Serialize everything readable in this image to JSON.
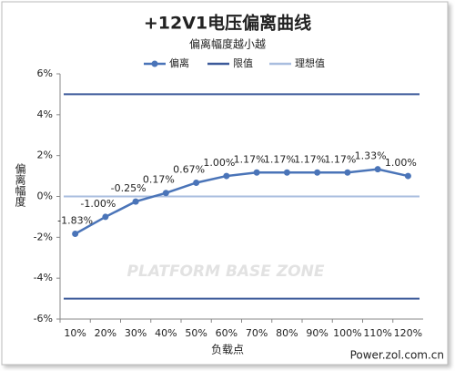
{
  "chart_data": {
    "type": "line",
    "title": "+12V1电压偏离曲线",
    "subtitle": "偏离幅度越小越",
    "xlabel": "负载点",
    "ylabel": "偏离幅度",
    "watermark": "PLATFORM BASE ZONE",
    "source": "Power.zol.com.cn",
    "categories": [
      "10%",
      "20%",
      "30%",
      "40%",
      "50%",
      "60%",
      "70%",
      "80%",
      "90%",
      "100%",
      "110%",
      "120%"
    ],
    "series": [
      {
        "name": "偏离",
        "color": "#4a74b8",
        "values": [
          -1.83,
          -1.0,
          -0.25,
          0.17,
          0.67,
          1.0,
          1.17,
          1.17,
          1.17,
          1.17,
          1.33,
          1.0
        ],
        "value_labels": [
          "-1.83%",
          "-1.00%",
          "-0.25%",
          "0.17%",
          "0.67%",
          "1.00%",
          "1.17%",
          "1.17%",
          "1.17%",
          "1.17%",
          "1.33%",
          "1.00%"
        ]
      }
    ],
    "reference_lines": [
      {
        "name": "限值",
        "color": "#3c5a9a",
        "values": [
          5,
          -5
        ]
      },
      {
        "name": "理想值",
        "color": "#a9bedf",
        "values": [
          0
        ]
      }
    ],
    "ylim": [
      -6,
      6
    ],
    "yticks": [
      {
        "value": -6,
        "label": "-6%"
      },
      {
        "value": -4,
        "label": "-4%"
      },
      {
        "value": -2,
        "label": "-2%"
      },
      {
        "value": 0,
        "label": "0%"
      },
      {
        "value": 2,
        "label": "2%"
      },
      {
        "value": 4,
        "label": "4%"
      },
      {
        "value": 6,
        "label": "6%"
      }
    ],
    "legend": "top"
  }
}
